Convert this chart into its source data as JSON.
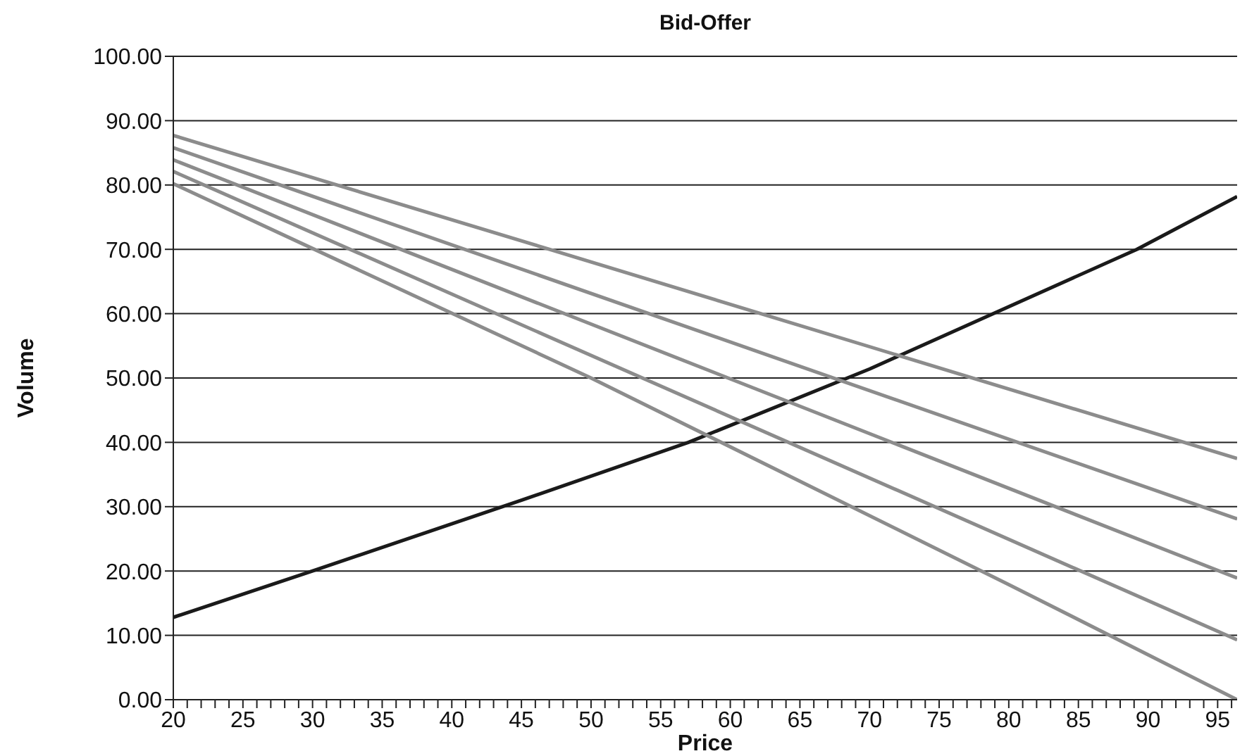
{
  "chart_data": {
    "type": "line",
    "title": "Bid-Offer",
    "xlabel": "Price",
    "ylabel": "Volume",
    "series": [
      {
        "color": "#1a1a1a",
        "x": [
          20,
          30,
          45,
          57,
          70,
          89.2,
          96.4
        ],
        "values": [
          12.8,
          20,
          31,
          40,
          51.4,
          70,
          78.2
        ]
      },
      {
        "color": "#8c8c8c",
        "x": [
          20,
          47,
          96.4
        ],
        "values": [
          87.7,
          70,
          37.5
        ]
      },
      {
        "color": "#8c8c8c",
        "x": [
          20,
          96.4
        ],
        "values": [
          85.8,
          28.1
        ]
      },
      {
        "color": "#8c8c8c",
        "x": [
          20,
          96.4
        ],
        "values": [
          83.9,
          18.9
        ]
      },
      {
        "color": "#8c8c8c",
        "x": [
          20,
          96.4
        ],
        "values": [
          82.1,
          9.3
        ]
      },
      {
        "color": "#8c8c8c",
        "x": [
          20,
          50,
          80,
          96.4
        ],
        "values": [
          80.2,
          50,
          17.9,
          0
        ]
      }
    ],
    "xlim": [
      20,
      96.4
    ],
    "xticks": [
      20,
      {
        "value": 21,
        "label": null
      },
      {
        "value": 22,
        "label": null
      },
      {
        "value": 23,
        "label": null
      },
      {
        "value": 24,
        "label": null
      },
      25,
      {
        "value": 26,
        "label": null
      },
      {
        "value": 27,
        "label": null
      },
      {
        "value": 28,
        "label": null
      },
      {
        "value": 29,
        "label": null
      },
      30,
      {
        "value": 31,
        "label": null
      },
      {
        "value": 32,
        "label": null
      },
      {
        "value": 33,
        "label": null
      },
      {
        "value": 34,
        "label": null
      },
      35,
      {
        "value": 36,
        "label": null
      },
      {
        "value": 37,
        "label": null
      },
      {
        "value": 38,
        "label": null
      },
      {
        "value": 39,
        "label": null
      },
      40,
      {
        "value": 41,
        "label": null
      },
      {
        "value": 42,
        "label": null
      },
      {
        "value": 43,
        "label": null
      },
      {
        "value": 44,
        "label": null
      },
      45,
      {
        "value": 46,
        "label": null
      },
      {
        "value": 47,
        "label": null
      },
      {
        "value": 48,
        "label": null
      },
      {
        "value": 49,
        "label": null
      },
      50,
      {
        "value": 51,
        "label": null
      },
      {
        "value": 52,
        "label": null
      },
      {
        "value": 53,
        "label": null
      },
      {
        "value": 54,
        "label": null
      },
      55,
      {
        "value": 56,
        "label": null
      },
      {
        "value": 57,
        "label": null
      },
      {
        "value": 58,
        "label": null
      },
      {
        "value": 59,
        "label": null
      },
      60,
      {
        "value": 61,
        "label": null
      },
      {
        "value": 62,
        "label": null
      },
      {
        "value": 63,
        "label": null
      },
      {
        "value": 64,
        "label": null
      },
      65,
      {
        "value": 66,
        "label": null
      },
      {
        "value": 67,
        "label": null
      },
      {
        "value": 68,
        "label": null
      },
      {
        "value": 69,
        "label": null
      },
      70,
      {
        "value": 71,
        "label": null
      },
      {
        "value": 72,
        "label": null
      },
      {
        "value": 73,
        "label": null
      },
      {
        "value": 74,
        "label": null
      },
      75,
      {
        "value": 76,
        "label": null
      },
      {
        "value": 77,
        "label": null
      },
      {
        "value": 78,
        "label": null
      },
      {
        "value": 79,
        "label": null
      },
      80,
      {
        "value": 81,
        "label": null
      },
      {
        "value": 82,
        "label": null
      },
      {
        "value": 83,
        "label": null
      },
      {
        "value": 84,
        "label": null
      },
      85,
      {
        "value": 86,
        "label": null
      },
      {
        "value": 87,
        "label": null
      },
      {
        "value": 88,
        "label": null
      },
      {
        "value": 89,
        "label": null
      },
      90,
      {
        "value": 91,
        "label": null
      },
      {
        "value": 92,
        "label": null
      },
      {
        "value": 93,
        "label": null
      },
      {
        "value": 94,
        "label": null
      },
      95,
      {
        "value": 96,
        "label": null
      }
    ],
    "ylim": [
      0,
      100
    ],
    "yticks": [
      {
        "value": 0,
        "label": "0.00"
      },
      {
        "value": 10,
        "label": "10.00"
      },
      {
        "value": 20,
        "label": "20.00"
      },
      {
        "value": 30,
        "label": "30.00"
      },
      {
        "value": 40,
        "label": "40.00"
      },
      {
        "value": 50,
        "label": "50.00"
      },
      {
        "value": 60,
        "label": "60.00"
      },
      {
        "value": 70,
        "label": "70.00"
      },
      {
        "value": 80,
        "label": "80.00"
      },
      {
        "value": 90,
        "label": "90.00"
      },
      {
        "value": 100,
        "label": "100.00"
      }
    ],
    "grid": "y",
    "marker": "none",
    "line_style": "solid"
  }
}
